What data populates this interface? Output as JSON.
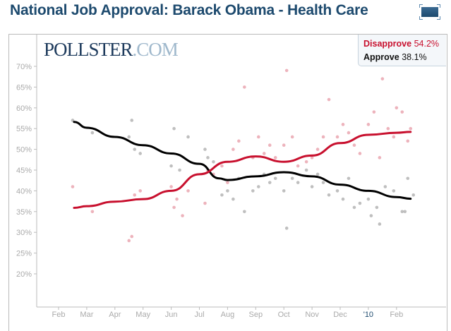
{
  "title": "National Job Approval: Barack Obama - Health Care",
  "logo": {
    "main": "POLLSTER",
    "suffix": ".COM"
  },
  "legend": {
    "disapprove_label": "Disapprove",
    "disapprove_value": "54.2%",
    "approve_label": "Approve",
    "approve_value": "38.1%"
  },
  "colors": {
    "disapprove": "#c8102e",
    "approve": "#000000",
    "title": "#1d4a6e"
  },
  "chart_data": {
    "type": "scatter",
    "title": "National Job Approval: Barack Obama - Health Care",
    "xlabel": "",
    "ylabel": "",
    "ylim": [
      12,
      72
    ],
    "xlim": [
      0.3,
      14.2
    ],
    "x_unit": "month index (1 = Feb 2009)",
    "yticks": [
      "70%",
      "65%",
      "60%",
      "55%",
      "50%",
      "45%",
      "40%",
      "35%",
      "30%",
      "25%",
      "20%"
    ],
    "ytick_values": [
      70,
      65,
      60,
      55,
      50,
      45,
      40,
      35,
      30,
      25,
      20
    ],
    "xticks": [
      {
        "label": "Feb",
        "x": 1
      },
      {
        "label": "Mar",
        "x": 2
      },
      {
        "label": "Apr",
        "x": 3
      },
      {
        "label": "May",
        "x": 4
      },
      {
        "label": "Jun",
        "x": 5
      },
      {
        "label": "Jul",
        "x": 6
      },
      {
        "label": "Aug",
        "x": 7
      },
      {
        "label": "Sep",
        "x": 8
      },
      {
        "label": "Oct",
        "x": 9
      },
      {
        "label": "Nov",
        "x": 10
      },
      {
        "label": "Dec",
        "x": 11
      },
      {
        "label": "'10",
        "x": 12,
        "highlight": true
      },
      {
        "label": "Feb",
        "x": 13
      }
    ],
    "series": [
      {
        "name": "Disapprove",
        "trend": [
          [
            1.55,
            35.9
          ],
          [
            2,
            36.3
          ],
          [
            3,
            37.4
          ],
          [
            4,
            38
          ],
          [
            5,
            40
          ],
          [
            6,
            44
          ],
          [
            7,
            47
          ],
          [
            8,
            48.3
          ],
          [
            9,
            47
          ],
          [
            10,
            48.5
          ],
          [
            11,
            51.5
          ],
          [
            12,
            53.5
          ],
          [
            13,
            54
          ],
          [
            13.5,
            54.2
          ]
        ],
        "points": [
          [
            1.5,
            41
          ],
          [
            2.2,
            35
          ],
          [
            3.5,
            28
          ],
          [
            3.6,
            29
          ],
          [
            3.7,
            39
          ],
          [
            3.9,
            40
          ],
          [
            5,
            41
          ],
          [
            5.1,
            36
          ],
          [
            5.2,
            38
          ],
          [
            5.4,
            34
          ],
          [
            5.6,
            40
          ],
          [
            6.2,
            37
          ],
          [
            6.3,
            45
          ],
          [
            6.5,
            44
          ],
          [
            6.8,
            46
          ],
          [
            7,
            42
          ],
          [
            7.2,
            50
          ],
          [
            7.4,
            52
          ],
          [
            7.6,
            65
          ],
          [
            7.9,
            48
          ],
          [
            8.1,
            53
          ],
          [
            8.3,
            49
          ],
          [
            8.5,
            51
          ],
          [
            8.7,
            48
          ],
          [
            9,
            51
          ],
          [
            9.1,
            69
          ],
          [
            9.3,
            53
          ],
          [
            9.5,
            46
          ],
          [
            9.8,
            47
          ],
          [
            10,
            48
          ],
          [
            10.2,
            50
          ],
          [
            10.4,
            53
          ],
          [
            10.6,
            62
          ],
          [
            10.9,
            53
          ],
          [
            11.1,
            56
          ],
          [
            11.3,
            54
          ],
          [
            11.5,
            51
          ],
          [
            11.7,
            49
          ],
          [
            12,
            56
          ],
          [
            12.2,
            59
          ],
          [
            12.4,
            48
          ],
          [
            12.5,
            67
          ],
          [
            12.7,
            55
          ],
          [
            12.9,
            53
          ],
          [
            13,
            60
          ],
          [
            13.2,
            59
          ],
          [
            13.4,
            52
          ],
          [
            13.5,
            55
          ]
        ]
      },
      {
        "name": "Approve",
        "trend": [
          [
            1.55,
            56.6
          ],
          [
            2,
            55.2
          ],
          [
            3,
            53
          ],
          [
            4,
            51
          ],
          [
            5,
            49
          ],
          [
            6,
            46.5
          ],
          [
            6.7,
            43
          ],
          [
            7,
            42.6
          ],
          [
            8,
            43.5
          ],
          [
            9,
            44.5
          ],
          [
            10,
            43.5
          ],
          [
            11,
            41.5
          ],
          [
            12,
            40
          ],
          [
            13,
            38.5
          ],
          [
            13.5,
            38.1
          ]
        ],
        "points": [
          [
            1.5,
            57
          ],
          [
            2.2,
            54
          ],
          [
            3.5,
            53
          ],
          [
            3.6,
            57
          ],
          [
            3.7,
            50
          ],
          [
            3.9,
            49
          ],
          [
            5,
            46
          ],
          [
            5.1,
            55
          ],
          [
            5.3,
            45
          ],
          [
            5.6,
            53
          ],
          [
            6.2,
            50
          ],
          [
            6.3,
            48
          ],
          [
            6.5,
            47
          ],
          [
            6.8,
            39
          ],
          [
            7,
            40
          ],
          [
            7.2,
            38
          ],
          [
            7.4,
            43
          ],
          [
            7.6,
            35
          ],
          [
            7.9,
            40
          ],
          [
            8.1,
            41
          ],
          [
            8.3,
            44
          ],
          [
            8.5,
            42
          ],
          [
            8.7,
            43
          ],
          [
            9,
            40
          ],
          [
            9.1,
            31
          ],
          [
            9.3,
            43
          ],
          [
            9.5,
            42
          ],
          [
            9.8,
            45
          ],
          [
            10,
            41
          ],
          [
            10.2,
            44
          ],
          [
            10.4,
            42
          ],
          [
            10.6,
            39
          ],
          [
            10.9,
            40
          ],
          [
            11.1,
            38
          ],
          [
            11.3,
            43
          ],
          [
            11.5,
            36
          ],
          [
            11.7,
            37
          ],
          [
            12,
            38
          ],
          [
            12.1,
            34
          ],
          [
            12.3,
            36
          ],
          [
            12.4,
            32
          ],
          [
            12.6,
            41
          ],
          [
            12.9,
            40
          ],
          [
            13.2,
            35
          ],
          [
            13.3,
            35
          ],
          [
            13.4,
            43
          ],
          [
            13.6,
            39
          ]
        ]
      }
    ]
  }
}
